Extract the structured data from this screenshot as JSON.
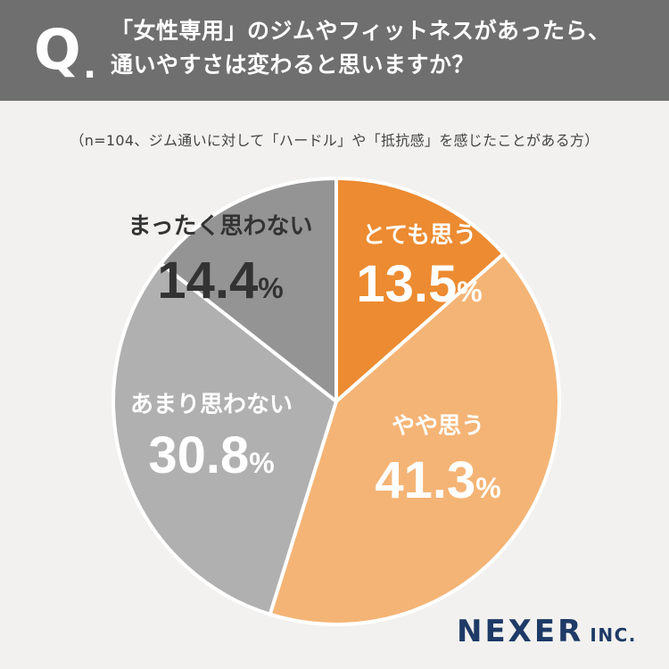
{
  "header": {
    "q_mark": "Q",
    "q_dot": ".",
    "question_line1": "「女性専用」のジムやフィットネスがあったら、",
    "question_line2": "通いやすさは変わると思いますか？"
  },
  "note": "（n=104、ジム通いに対して「ハードル」や「抵抗感」を感じたことがある方）",
  "chart_data": {
    "type": "pie",
    "title": "",
    "unit": "%",
    "start_angle_deg": 0,
    "direction": "clockwise",
    "slices": [
      {
        "label": "とても思う",
        "value": 13.5,
        "color": "#ec8b31",
        "text_color": "#ffffff"
      },
      {
        "label": "やや思う",
        "value": 41.3,
        "color": "#f4b475",
        "text_color": "#ffffff"
      },
      {
        "label": "あまり思わない",
        "value": 30.8,
        "color": "#b1b0b0",
        "text_color": "#ffffff"
      },
      {
        "label": "まったく思わない",
        "value": 14.4,
        "color": "#949494",
        "text_color": "#333333"
      }
    ]
  },
  "logo": {
    "main": "NEXER",
    "sub": "INC."
  }
}
